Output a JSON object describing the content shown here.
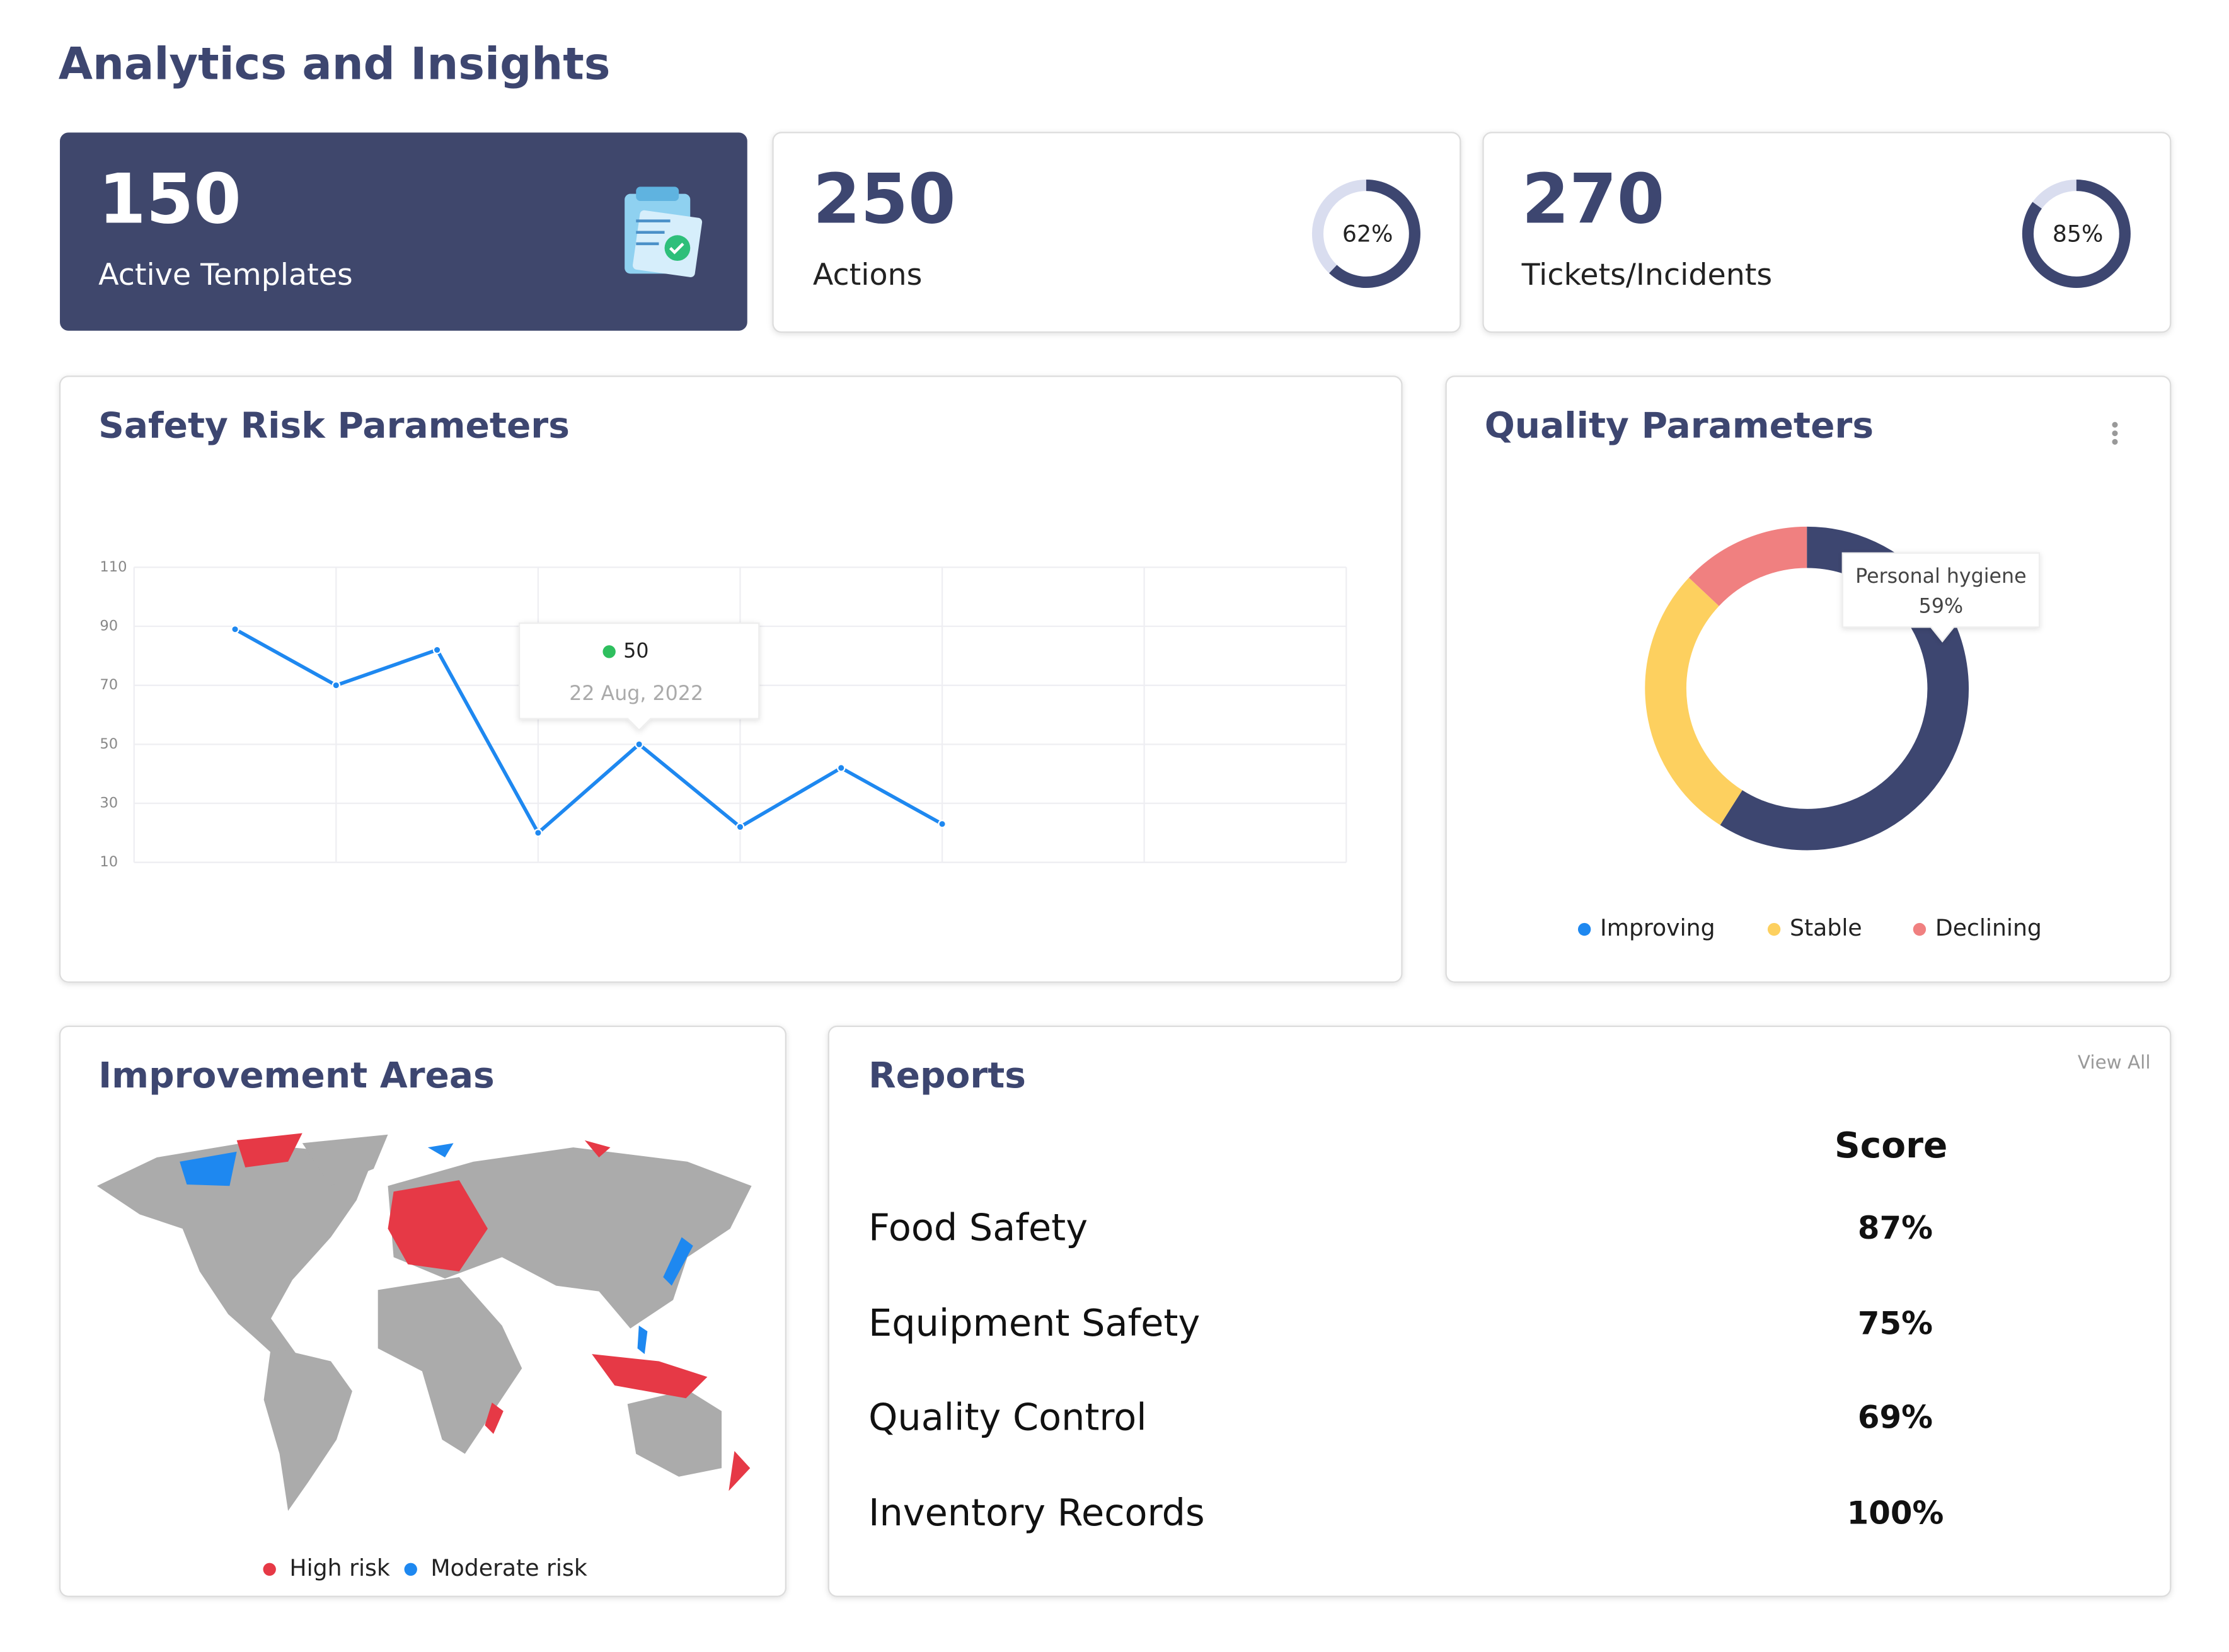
{
  "header": {
    "title": "Analytics and Insights"
  },
  "cards": [
    {
      "value": 150,
      "label": "Active Templates"
    },
    {
      "value": 250,
      "label": "Actions",
      "percent": 62,
      "percent_label": "62%"
    },
    {
      "value": 270,
      "label": "Tickets/Incidents",
      "percent": 85,
      "percent_label": "85%"
    }
  ],
  "chart_data": [
    {
      "type": "line",
      "title": "Safety Risk Parameters",
      "categories": [
        null,
        null,
        null,
        null,
        "22 Aug, 2022",
        null,
        null,
        null
      ],
      "series": [
        {
          "name": null,
          "color": "#1e88f0",
          "values": [
            89,
            70,
            82,
            20,
            50,
            22,
            42,
            23
          ]
        }
      ],
      "ylim": [
        10,
        110
      ],
      "yticks": [
        10,
        30,
        50,
        70,
        90,
        110
      ],
      "grid": true,
      "tooltip_index": 4
    },
    {
      "type": "pie",
      "title": "Quality Parameters",
      "donut": true,
      "categories": [
        "Improving",
        "Stable",
        "Declining"
      ],
      "values": [
        59,
        28,
        13
      ],
      "colors": [
        "#3d4670",
        "#fdd05f",
        "#f08080"
      ],
      "legend_colors": [
        "#1e88f0",
        "#fdd05f",
        "#f08080"
      ],
      "tooltip_name": "Personal hygiene",
      "value_labels": [
        "59%",
        null,
        null
      ]
    }
  ],
  "map": {
    "title": "Improvement Areas",
    "legend": [
      {
        "name": "High risk",
        "color": "#e63946"
      },
      {
        "name": "Moderate risk",
        "color": "#1e88f0"
      }
    ]
  },
  "reports": {
    "title": "Reports",
    "link": "View All",
    "score_header": "Score",
    "rows": [
      [
        "Food Safety",
        "87%"
      ],
      [
        "Equipment Safety",
        "75%"
      ],
      [
        "Quality Control",
        "69%"
      ],
      [
        "Inventory Records",
        "100%"
      ]
    ]
  }
}
